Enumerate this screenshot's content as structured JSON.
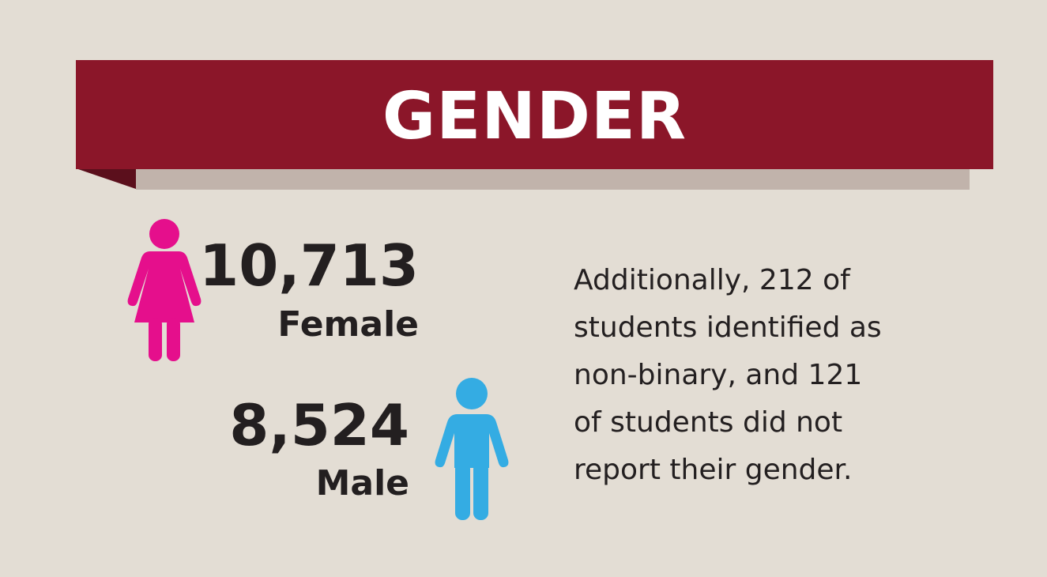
{
  "title": "GENDER",
  "colors": {
    "background": "#e3ddd4",
    "banner": "#8b1629",
    "female": "#e50f8c",
    "male": "#34ace3",
    "text": "#231f20"
  },
  "icons": {
    "female": "female-person-icon",
    "male": "male-person-icon"
  },
  "stats": {
    "female": {
      "value": "10,713",
      "label": "Female"
    },
    "male": {
      "value": "8,524",
      "label": "Male"
    }
  },
  "note": {
    "lines": [
      "Additionally, 212 of",
      "students identified as",
      "non-binary, and 121",
      "of students did not",
      "report their gender."
    ]
  }
}
